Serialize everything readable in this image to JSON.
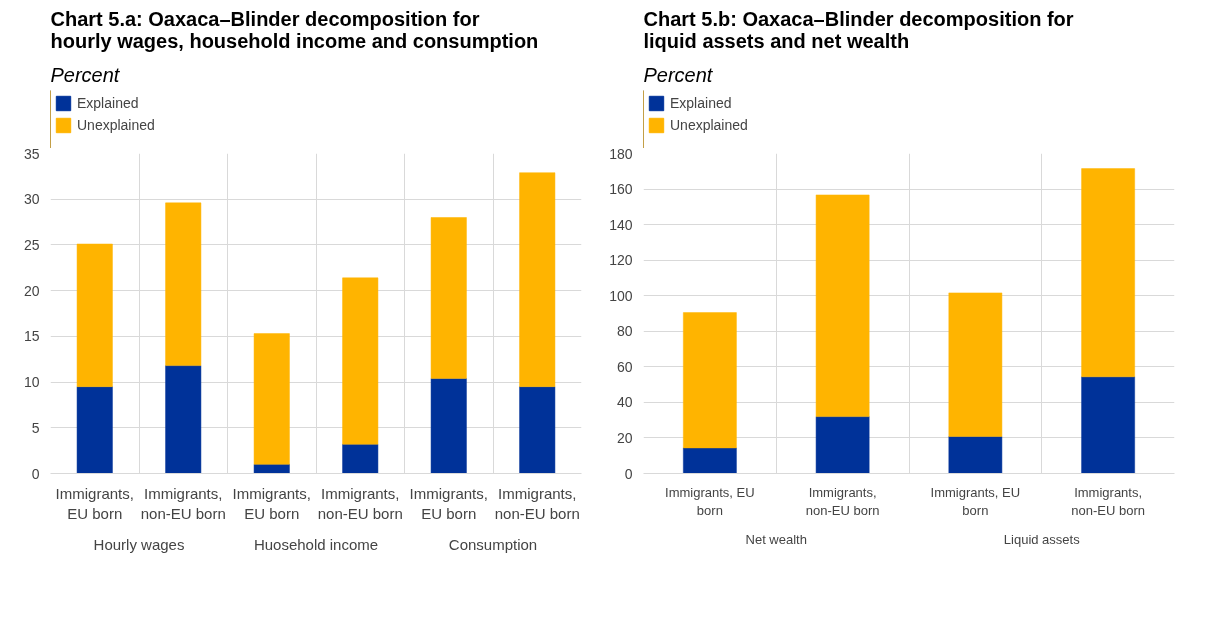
{
  "chart_data": [
    {
      "type": "bar",
      "title": "Chart 5.a: Oaxaca–Blinder decomposition for hourly wages, household income and consumption",
      "subtitle": "Percent",
      "categories": [
        "Immigrants, EU born",
        "Immigrants, non-EU born",
        "Immigrants, EU born",
        "Immigrants, non-EU born",
        "Immigrants, EU born",
        "Immigrants, non-EU born"
      ],
      "annotations": [
        "Hourly wages",
        "Huosehold income",
        "Consumption"
      ],
      "stacked": true,
      "series": [
        {
          "name": "Explained",
          "color": "#003299",
          "values": [
            9.5,
            11.8,
            1.0,
            3.2,
            10.4,
            9.5
          ]
        },
        {
          "name": "Unexplained",
          "color": "#ffb400",
          "values": [
            15.6,
            17.8,
            14.3,
            18.2,
            17.6,
            23.4
          ]
        }
      ],
      "ylim": [
        0,
        35
      ],
      "yticks": [
        0,
        5,
        10,
        15,
        20,
        25,
        30,
        35
      ],
      "grid": true,
      "legend": "top left"
    },
    {
      "type": "bar",
      "title": "Chart 5.b: Oaxaca–Blinder decomposition for liquid assets and net wealth",
      "subtitle": "Percent",
      "categories": [
        "Immigrants, EU born",
        "Immigrants, non-EU born",
        "Immigrants, EU born",
        "Immigrants, non-EU born"
      ],
      "annotations": [
        "Net wealth",
        "Liquid assets"
      ],
      "stacked": true,
      "series": [
        {
          "name": "Explained",
          "color": "#003299",
          "values": [
            14.4,
            32,
            20.8,
            54.4
          ]
        },
        {
          "name": "Unexplained",
          "color": "#ffb400",
          "values": [
            76.1,
            124.7,
            80.8,
            117.1
          ]
        }
      ],
      "ylim": [
        0,
        180
      ],
      "yticks": [
        0,
        20,
        40,
        60,
        80,
        100,
        120,
        140,
        160,
        180
      ],
      "grid": true,
      "legend": "top left"
    }
  ]
}
